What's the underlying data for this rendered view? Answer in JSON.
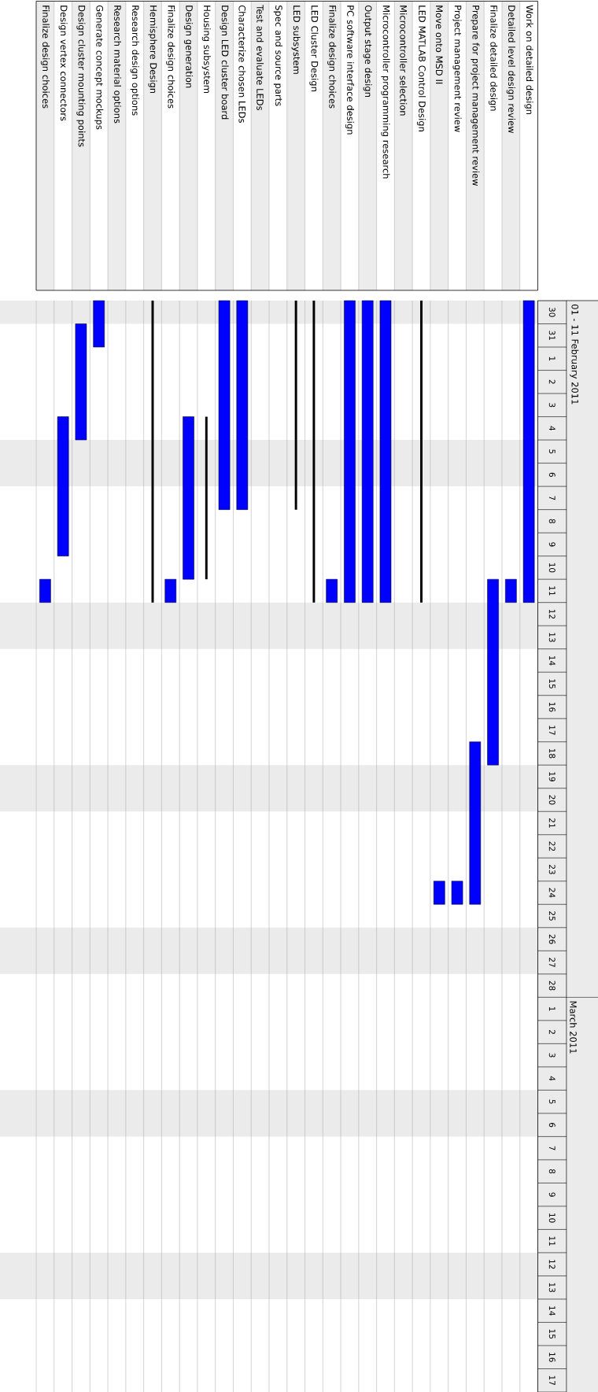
{
  "chart_data": {
    "type": "bar",
    "categories": [
      "Finalize design choices",
      "Design vertex connectors",
      "Design cluster mounting points",
      "Generate concept mockups",
      "Research material options",
      "Research design options",
      "Hemisphere Design",
      "Finalize design choices",
      "Design generation",
      "Housing subsystem",
      "Design LED cluster board",
      "Characterize chosen LEDs",
      "Test and evaluate LEDs",
      "Spec and source parts",
      "LED subsystem",
      "LED Cluster Design",
      "Finalize design choices",
      "PC software interface design",
      "Output stage design",
      "Microcontroller programming research",
      "Microcontroller selection",
      "LED MATLAB Control Design",
      "Move onto MSD II",
      "Project management review",
      "Prepare for project management review",
      "Finalize detailed design",
      "Detailed level design review",
      "Work on detailed design"
    ],
    "series": [
      {
        "color": "#0000ff",
        "base": [
          15016,
          15009,
          15005,
          15004,
          null,
          null,
          null,
          15016,
          15009,
          null,
          15004,
          15004,
          null,
          null,
          null,
          null,
          15016,
          15004,
          15004,
          15004,
          null,
          null,
          15029,
          15029,
          15023,
          15016,
          15016,
          15004
        ],
        "values": [
          1,
          6,
          5,
          2,
          null,
          null,
          null,
          1,
          7,
          null,
          9,
          9,
          null,
          null,
          null,
          null,
          1,
          13,
          13,
          13,
          null,
          null,
          1,
          1,
          7,
          8,
          1,
          13
        ]
      },
      {
        "color": "#000000",
        "base": [
          null,
          null,
          null,
          null,
          null,
          null,
          15004,
          null,
          null,
          15009,
          null,
          null,
          null,
          null,
          15004,
          15004,
          null,
          null,
          null,
          null,
          null,
          15004,
          null,
          null,
          null,
          null,
          null,
          null
        ],
        "values": [
          null,
          null,
          null,
          null,
          null,
          null,
          13,
          null,
          null,
          7,
          null,
          null,
          null,
          null,
          9,
          13,
          null,
          null,
          null,
          null,
          null,
          13,
          null,
          null,
          null,
          null,
          null,
          null
        ]
      }
    ],
    "ylim": [
      "2011-03-18",
      "2011-01-30"
    ],
    "yticks": [
      {
        "value": "2011-01-30T12:00",
        "label": "30"
      },
      {
        "value": "2011-01-31T12:00",
        "label": "31"
      },
      {
        "value": "2011-02-01T12:00",
        "label": "1"
      },
      {
        "value": "2011-02-02T12:00",
        "label": "2"
      },
      {
        "value": "2011-02-03T12:00",
        "label": "3"
      },
      {
        "value": "2011-02-04T12:00",
        "label": "4"
      },
      {
        "value": "2011-02-05T12:00",
        "label": "5"
      },
      {
        "value": "2011-02-06T12:00",
        "label": "6"
      },
      {
        "value": "2011-02-07T12:00",
        "label": "7"
      },
      {
        "value": "2011-02-08T12:00",
        "label": "8"
      },
      {
        "value": "2011-02-09T12:00",
        "label": "9"
      },
      {
        "value": "2011-02-10T12:00",
        "label": "10"
      },
      {
        "value": "2011-02-11T12:00",
        "label": "11"
      },
      {
        "value": "2011-02-12T12:00",
        "label": "12"
      },
      {
        "value": "2011-02-13T12:00",
        "label": "13"
      },
      {
        "value": "2011-02-14T12:00",
        "label": "14"
      },
      {
        "value": "2011-02-15T12:00",
        "label": "15"
      },
      {
        "value": "2011-02-16T12:00",
        "label": "16"
      },
      {
        "value": "2011-02-17T12:00",
        "label": "17"
      },
      {
        "value": "2011-02-18T12:00",
        "label": "18"
      },
      {
        "value": "2011-02-19T12:00",
        "label": "19"
      },
      {
        "value": "2011-02-20T12:00",
        "label": "20"
      },
      {
        "value": "2011-02-21T12:00",
        "label": "21"
      },
      {
        "value": "2011-02-22T12:00",
        "label": "22"
      },
      {
        "value": "2011-02-23T12:00",
        "label": "23"
      },
      {
        "value": "2011-02-24T12:00",
        "label": "24"
      },
      {
        "value": "2011-02-25T12:00",
        "label": "25"
      },
      {
        "value": "2011-02-26T12:00",
        "label": "26"
      },
      {
        "value": "2011-02-27T12:00",
        "label": "27"
      },
      {
        "value": "2011-02-28T12:00",
        "label": "28"
      },
      {
        "value": "2011-03-01T12:00",
        "label": "1"
      },
      {
        "value": "2011-03-02T12:00",
        "label": "2"
      },
      {
        "value": "2011-03-03T12:00",
        "label": "3"
      },
      {
        "value": "2011-03-04T12:00",
        "label": "4"
      },
      {
        "value": "2011-03-05T12:00",
        "label": "5"
      },
      {
        "value": "2011-03-06T12:00",
        "label": "6"
      },
      {
        "value": "2011-03-07T12:00",
        "label": "7"
      },
      {
        "value": "2011-03-08T12:00",
        "label": "8"
      },
      {
        "value": "2011-03-09T12:00",
        "label": "9"
      },
      {
        "value": "2011-03-10T12:00",
        "label": "10"
      },
      {
        "value": "2011-03-11T12:00",
        "label": "11"
      },
      {
        "value": "2011-03-12T12:00",
        "label": "12"
      },
      {
        "value": "2011-03-13T12:00",
        "label": "13"
      },
      {
        "value": "2011-03-14T12:00",
        "label": "14"
      },
      {
        "value": "2011-03-15T12:00",
        "label": "15"
      },
      {
        "value": "2011-03-16T12:00",
        "label": "16"
      },
      {
        "value": "2011-03-17T12:00",
        "label": "17"
      }
    ],
    "annotations": [
      "01 - 11 February 2011",
      "March 2011"
    ],
    "bands": [
      {
        "axis": "y",
        "from": 15004,
        "to": 15005,
        "color": "#ebebeb"
      },
      {
        "axis": "y",
        "from": 15010,
        "to": 15012,
        "color": "#ebebeb"
      },
      {
        "axis": "y",
        "from": 15017,
        "to": 15019,
        "color": "#ebebeb"
      },
      {
        "axis": "y",
        "from": 15024,
        "to": 15026,
        "color": "#ebebeb"
      },
      {
        "axis": "y",
        "from": 15031,
        "to": 15033,
        "color": "#ebebeb"
      },
      {
        "axis": "y",
        "from": 15038,
        "to": 15040,
        "color": "#ebebeb"
      },
      {
        "axis": "y",
        "from": 15045,
        "to": 15047,
        "color": "#ebebeb"
      }
    ],
    "grid": "x"
  }
}
